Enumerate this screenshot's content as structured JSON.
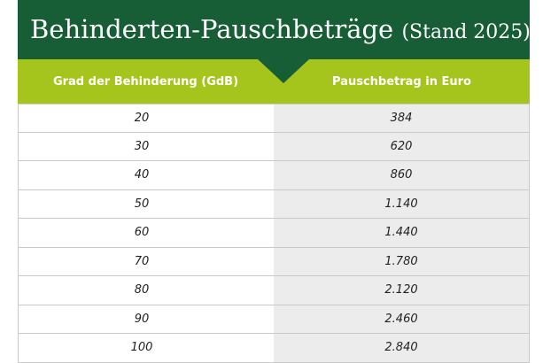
{
  "title": {
    "main": "Behinderten-Pauschbeträge",
    "sub": "(Stand 2025)"
  },
  "columns": {
    "degree": "Grad der Behinderung (GdB)",
    "amount": "Pauschbetrag in Euro"
  },
  "rows": [
    {
      "degree": "20",
      "amount": "384"
    },
    {
      "degree": "30",
      "amount": "620"
    },
    {
      "degree": "40",
      "amount": "860"
    },
    {
      "degree": "50",
      "amount": "1.140"
    },
    {
      "degree": "60",
      "amount": "1.440"
    },
    {
      "degree": "70",
      "amount": "1.780"
    },
    {
      "degree": "80",
      "amount": "2.120"
    },
    {
      "degree": "90",
      "amount": "2.460"
    },
    {
      "degree": "100",
      "amount": "2.840"
    }
  ],
  "colors": {
    "title_bg": "#175d35",
    "header_bg": "#a6c51c",
    "right_column_bg": "#ececec"
  }
}
